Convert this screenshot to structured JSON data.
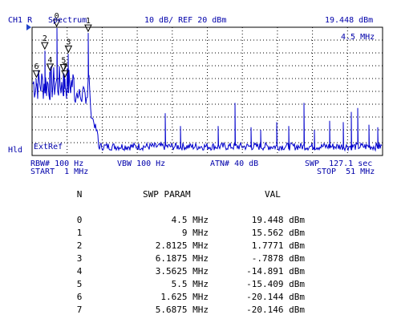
{
  "header": {
    "channel": "CH1 R",
    "mode": "Spectrum",
    "scale": "10 dB/ REF 20 dBm",
    "marker_value": "19.448 dBm",
    "marker_freq": "4.5 MHz"
  },
  "side": {
    "hold": "Hld"
  },
  "overlay": {
    "ext_ref": "ExtRef"
  },
  "footer": {
    "rbw": "RBW# 100 Hz",
    "vbw": "VBW 100 Hz",
    "atn": "ATN# 40 dB",
    "swp": "SWP  127.1 sec",
    "start": "START  1 MHz",
    "stop": "STOP  51 MHz"
  },
  "colors": {
    "trace": "#0000cc",
    "grid": "#000000",
    "text": "#0000aa"
  },
  "chart_data": {
    "type": "line",
    "x_unit": "MHz",
    "y_unit": "dBm",
    "xlim": [
      1,
      51
    ],
    "ylim": [
      -80,
      20
    ],
    "grid": true,
    "markers": [
      {
        "label": "0",
        "x": 4.5,
        "y": 19.448
      },
      {
        "label": "1",
        "x": 9,
        "y": 15.562
      },
      {
        "label": "2",
        "x": 2.8125,
        "y": 1.7771
      },
      {
        "label": "3",
        "x": 6.1875,
        "y": -0.7878
      },
      {
        "label": "4",
        "x": 3.5625,
        "y": -14.891
      },
      {
        "label": "5",
        "x": 5.5,
        "y": -15.409
      },
      {
        "label": "6",
        "x": 1.625,
        "y": -20.144
      },
      {
        "label": "7",
        "x": 5.6875,
        "y": -20.146
      }
    ],
    "spikes": [
      {
        "x": 20.0,
        "y": -47
      },
      {
        "x": 22.2,
        "y": -57
      },
      {
        "x": 27.5,
        "y": -57
      },
      {
        "x": 29.9,
        "y": -39
      },
      {
        "x": 32.2,
        "y": -58
      },
      {
        "x": 33.6,
        "y": -60
      },
      {
        "x": 35.9,
        "y": -54
      },
      {
        "x": 37.6,
        "y": -57
      },
      {
        "x": 39.8,
        "y": -39
      },
      {
        "x": 41.3,
        "y": -60
      },
      {
        "x": 43.5,
        "y": -53
      },
      {
        "x": 45.4,
        "y": -54
      },
      {
        "x": 46.5,
        "y": -46
      },
      {
        "x": 47.5,
        "y": -43
      },
      {
        "x": 49.0,
        "y": -56
      },
      {
        "x": 50.3,
        "y": -58
      }
    ]
  },
  "table": {
    "headers": {
      "n": "N",
      "param": "SWP PARAM",
      "val": "VAL"
    },
    "rows": [
      {
        "n": "0",
        "param": "4.5 MHz",
        "val": "19.448 dBm"
      },
      {
        "n": "1",
        "param": "9 MHz",
        "val": "15.562 dBm"
      },
      {
        "n": "2",
        "param": "2.8125 MHz",
        "val": "1.7771 dBm"
      },
      {
        "n": "3",
        "param": "6.1875 MHz",
        "val": "-.7878 dBm"
      },
      {
        "n": "4",
        "param": "3.5625 MHz",
        "val": "-14.891 dBm"
      },
      {
        "n": "5",
        "param": "5.5 MHz",
        "val": "-15.409 dBm"
      },
      {
        "n": "6",
        "param": "1.625 MHz",
        "val": "-20.144 dBm"
      },
      {
        "n": "7",
        "param": "5.6875 MHz",
        "val": "-20.146 dBm"
      }
    ]
  }
}
